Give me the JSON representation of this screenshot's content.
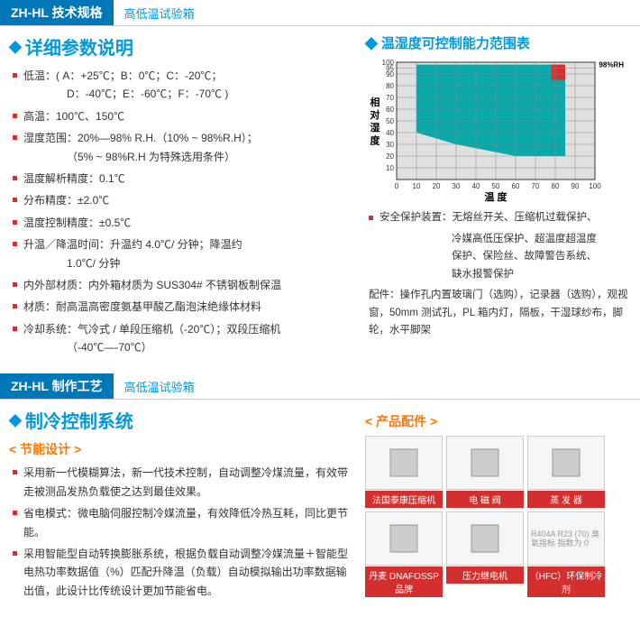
{
  "section1": {
    "tab": "ZH-HL 技术规格",
    "subtitle": "高低温试验箱",
    "heading": "详细参数说明",
    "specs": [
      {
        "text": "低温：( A：+25℃；B：0℃；C：-20℃；",
        "cont": "D：-40℃；E：-60℃；F：-70℃ )"
      },
      {
        "text": "高温：100℃、150℃"
      },
      {
        "text": "湿度范围：20%—98% R.H.（10% ~ 98%R.H）；",
        "cont": "（5% ~ 98%R.H 为特殊选用条件）"
      },
      {
        "text": "温度解析精度：0.1℃"
      },
      {
        "text": "分布精度：±2.0℃"
      },
      {
        "text": "温度控制精度：±0.5℃"
      },
      {
        "text": "升温／降温时间：升温约 4.0℃/ 分钟；降温约",
        "cont": "1.0℃/ 分钟"
      },
      {
        "text": "内外部材质：内外箱材质为 SUS304# 不锈钢板制保温"
      },
      {
        "text": "材质：耐高温高密度氨基甲酸乙酯泡沫绝缘体材料"
      },
      {
        "text": "冷却系统：气冷式 / 单段压缩机（-20℃）；双段压缩机",
        "cont": "（-40℃—-70℃）"
      }
    ],
    "chart": {
      "title": "温湿度可控制能力范围表",
      "xlabel": "温 度",
      "ylabel": "相 对 湿 度",
      "annotation": "98%RH",
      "yticks": [
        10,
        20,
        30,
        40,
        50,
        60,
        70,
        80,
        90,
        95,
        100
      ],
      "xticks": [
        0,
        10,
        20,
        30,
        40,
        50,
        60,
        70,
        80,
        90,
        100
      ],
      "bg_color": "#e0e0e0",
      "fill_color": "#0aa8a8",
      "red_color": "#d32f2f",
      "grid_color": "#888"
    },
    "safety": [
      {
        "text": "安全保护装置：无熔丝开关、压缩机过载保护、"
      },
      {
        "cont_only": "冷媒高低压保护、超温度超温度"
      },
      {
        "cont_only": "保护、保险丝、故障警告系统、"
      },
      {
        "cont_only": "缺水报警保护"
      }
    ],
    "accessories_text": "配件：操作孔内置玻璃门（选购），记录器（选购），观视窗，50mm 测试孔，PL 箱内灯，隔板，干湿球纱布，脚轮，水平脚架"
  },
  "section2": {
    "tab": "ZH-HL 制作工艺",
    "subtitle": "高低温试验箱",
    "heading": "制冷控制系统",
    "subheading": "节能设计",
    "specs": [
      {
        "text": "采用新一代模糊算法，新一代技术控制，自动调整冷煤流量，有效带走被测品发热负载使之达到最佳效果。"
      },
      {
        "text": "省电模式：微电脑伺服控制冷媒流量，有效降低冷热互耗，同比更节能。"
      },
      {
        "text": "采用智能型自动转换膨胀系统，根据负载自动调整冷媒流量＋智能型电热功率数据值（%）匹配升降温（负载）自动模拟输出功率数据输出值，此设计比传统设计更加节能省电。"
      }
    ],
    "accessories_title": "产品配件",
    "accessories": [
      {
        "label": "法国泰康压缩机",
        "icon": "compressor"
      },
      {
        "label": "电 磁 阀",
        "icon": "valve"
      },
      {
        "label": "蒸 发 器",
        "icon": "evaporator"
      },
      {
        "label": "丹麦 DNAFOSSP 品牌",
        "icon": "danfoss"
      },
      {
        "label": "压力继电机",
        "icon": "relay"
      },
      {
        "label": "（HFC）环保制冷剂",
        "icon": "hfc",
        "extra": "R404A\nR23 (70)\n臭氧指标\n指数为 0"
      }
    ]
  }
}
